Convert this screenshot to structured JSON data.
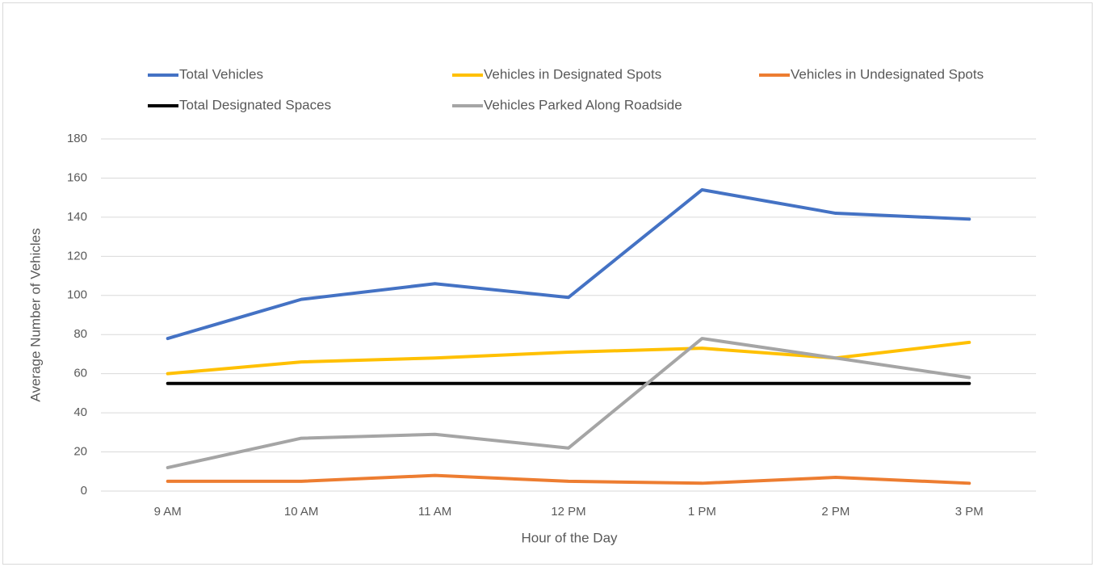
{
  "chart_data": {
    "type": "line",
    "x_label": "Hour of the Day",
    "y_label": "Average Number of Vehicles",
    "categories": [
      "9 AM",
      "10 AM",
      "11 AM",
      "12 PM",
      "1 PM",
      "2 PM",
      "3 PM"
    ],
    "series": [
      {
        "name": "Total Vehicles",
        "color": "#4472c4",
        "values": [
          78,
          98,
          106,
          99,
          154,
          142,
          139
        ]
      },
      {
        "name": "Vehicles in Designated Spots",
        "color": "#ffc000",
        "values": [
          60,
          66,
          68,
          71,
          73,
          68,
          76
        ]
      },
      {
        "name": "Vehicles in Undesignated Spots",
        "color": "#ed7d31",
        "values": [
          5,
          5,
          8,
          5,
          4,
          7,
          4
        ]
      },
      {
        "name": "Total Designated Spaces",
        "color": "#000000",
        "values": [
          55,
          55,
          55,
          55,
          55,
          55,
          55
        ]
      },
      {
        "name": "Vehicles Parked Along Roadside",
        "color": "#a5a5a5",
        "values": [
          12,
          27,
          29,
          22,
          78,
          68,
          58
        ]
      }
    ],
    "ylim": [
      0,
      180
    ],
    "yticks": [
      0,
      20,
      40,
      60,
      80,
      100,
      120,
      140,
      160,
      180
    ],
    "grid": true,
    "legend": "top"
  }
}
